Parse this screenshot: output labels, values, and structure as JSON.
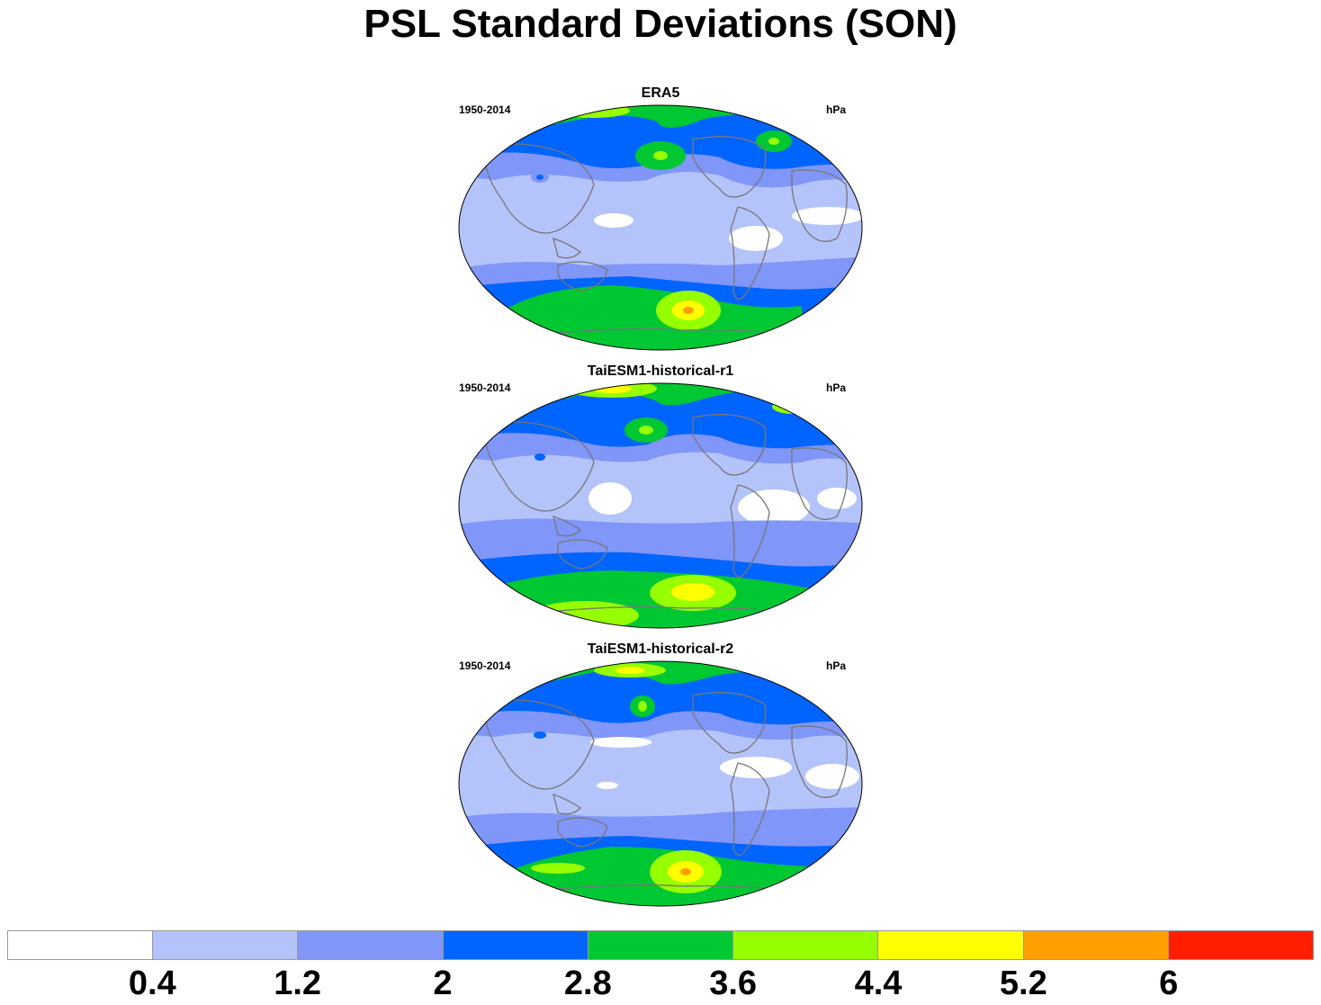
{
  "title": "PSL Standard Deviations (SON)",
  "panels": [
    {
      "title": "ERA5",
      "period": "1950-2014",
      "units": "hPa"
    },
    {
      "title": "TaiESM1-historical-r1",
      "period": "1950-2014",
      "units": "hPa"
    },
    {
      "title": "TaiESM1-historical-r2",
      "period": "1950-2014",
      "units": "hPa"
    }
  ],
  "colorbar": {
    "labels": [
      "0.4",
      "1.2",
      "2",
      "2.8",
      "3.6",
      "4.4",
      "5.2",
      "6"
    ],
    "colors": [
      "#ffffff",
      "#b4c4fa",
      "#8096f8",
      "#0064ff",
      "#00c832",
      "#96ff00",
      "#ffff00",
      "#ffa000",
      "#ff1e00"
    ]
  }
}
